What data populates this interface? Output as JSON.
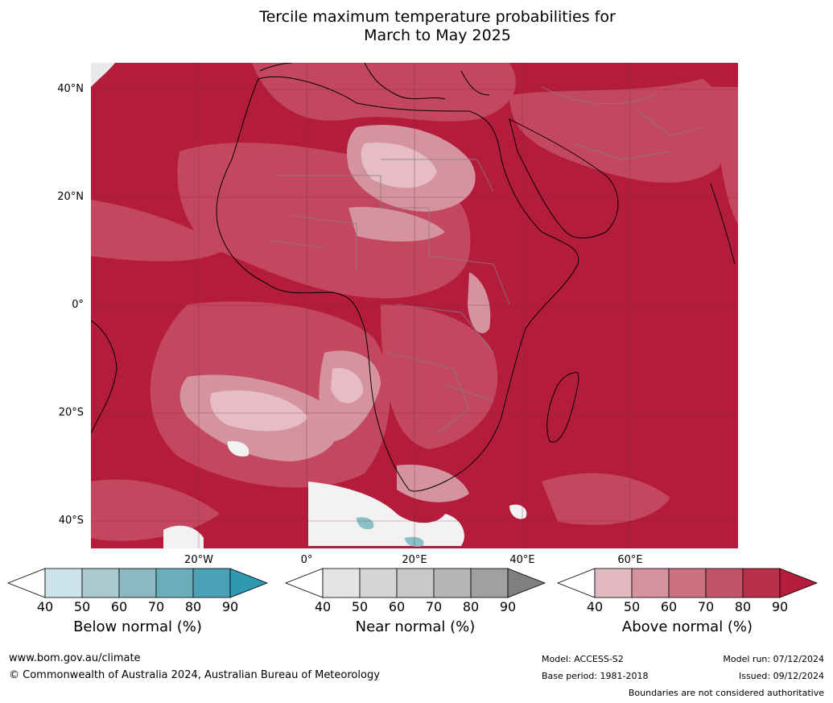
{
  "title_line1": "Tercile maximum temperature probabilities for",
  "title_line2": "March to May 2025",
  "lat_labels": [
    "40°N",
    "20°N",
    "0°",
    "20°S",
    "40°S"
  ],
  "lon_labels": [
    "20°W",
    "0°",
    "20°E",
    "40°E",
    "60°E"
  ],
  "colorbars": [
    {
      "label": "Below normal (%)",
      "ticks": [
        "40",
        "50",
        "60",
        "70",
        "80",
        "90"
      ],
      "colors": [
        "#cde3ea",
        "#aac9d0",
        "#8cb8c3",
        "#6cadbc",
        "#4aa0b4"
      ],
      "extend_color": "#2e98b0"
    },
    {
      "label": "Near normal (%)",
      "ticks": [
        "40",
        "50",
        "60",
        "70",
        "80",
        "90"
      ],
      "colors": [
        "#e4e4e4",
        "#d6d6d6",
        "#c8c8c8",
        "#b5b5b5",
        "#a0a0a0"
      ],
      "extend_color": "#7f7f7f"
    },
    {
      "label": "Above normal (%)",
      "ticks": [
        "40",
        "50",
        "60",
        "70",
        "80",
        "90"
      ],
      "colors": [
        "#e2b9c2",
        "#d5939f",
        "#cb707d",
        "#c15467",
        "#b83048"
      ],
      "extend_color": "#b41c3c"
    }
  ],
  "footer": {
    "website": "www.bom.gov.au/climate",
    "copyright": "© Commonwealth of Australia 2024, Australian Bureau of Meteorology",
    "model": "Model: ACCESS-S2",
    "base_period": "Base period: 1981-2018",
    "model_run": "Model run: 07/12/2024",
    "issued": "Issued: 09/12/2024",
    "disclaimer": "Boundaries are not considered authoritative"
  },
  "colors": {
    "map_dark": "#b41c3c",
    "map_mid": "#c44a60",
    "map_light": "#d5939f",
    "map_pale": "#e6bcc5",
    "near_normal_white": "#f2f2f2",
    "below_teal": "#8cc0c8",
    "coast": "#000000",
    "border": "#808080"
  }
}
